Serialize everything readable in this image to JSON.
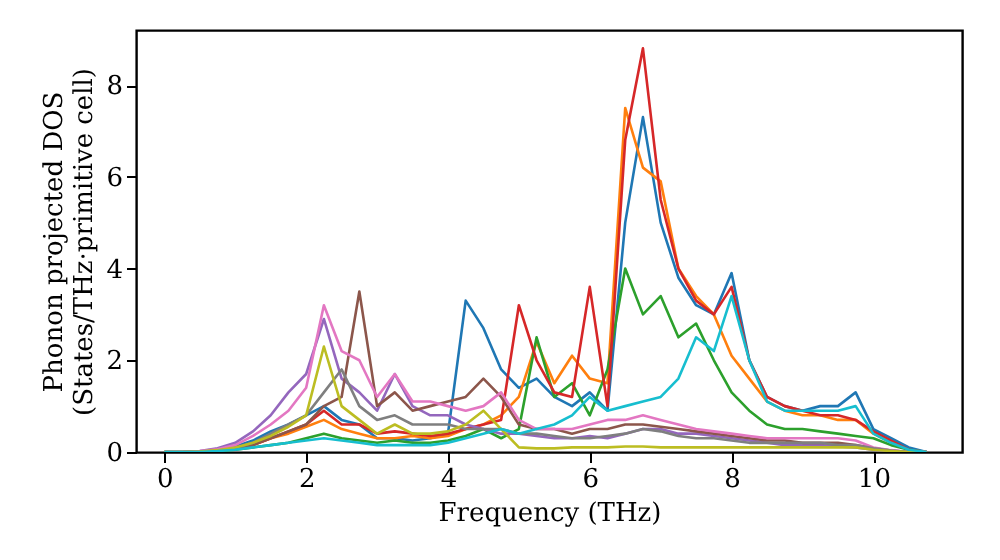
{
  "chart_data": {
    "type": "line",
    "xlabel": "Frequency (THz)",
    "ylabel": "Phonon projected DOS\n(States/THz·primitive cell)",
    "xlim": [
      -0.4,
      11.25
    ],
    "ylim": [
      0,
      9.2
    ],
    "xticks": [
      0,
      2,
      4,
      6,
      8,
      10
    ],
    "yticks": [
      0,
      2,
      4,
      6,
      8
    ],
    "grid": false,
    "legend": false,
    "marker": "none",
    "line_style": "solid",
    "x": [
      0,
      0.25,
      0.5,
      0.75,
      1,
      1.25,
      1.5,
      1.75,
      2,
      2.25,
      2.5,
      2.75,
      3,
      3.25,
      3.5,
      3.75,
      4,
      4.25,
      4.5,
      4.75,
      5,
      5.25,
      5.5,
      5.75,
      6,
      6.25,
      6.5,
      6.75,
      7,
      7.25,
      7.5,
      7.75,
      8,
      8.25,
      8.5,
      8.75,
      9,
      9.25,
      9.5,
      9.75,
      10,
      10.25,
      10.5,
      10.75
    ],
    "series": [
      {
        "color": "#1f77b4",
        "values": [
          null,
          null,
          null,
          0.05,
          0.12,
          0.25,
          0.45,
          0.6,
          0.8,
          1.0,
          0.7,
          0.6,
          0.3,
          0.3,
          0.25,
          0.3,
          0.4,
          3.3,
          2.7,
          1.8,
          1.4,
          1.6,
          1.2,
          1.0,
          1.3,
          0.9,
          5.0,
          7.3,
          5.0,
          3.8,
          3.2,
          3.0,
          3.9,
          2.0,
          1.2,
          1.0,
          0.9,
          1.0,
          1.0,
          1.3,
          0.5,
          0.3,
          0.1,
          0
        ]
      },
      {
        "color": "#ff7f0e",
        "values": [
          null,
          null,
          null,
          null,
          null,
          0.15,
          0.3,
          0.4,
          0.55,
          0.7,
          0.5,
          0.4,
          0.3,
          0.3,
          0.35,
          0.3,
          0.35,
          0.5,
          0.6,
          0.8,
          1.2,
          2.4,
          1.5,
          2.1,
          1.6,
          1.5,
          7.5,
          6.2,
          5.9,
          4.0,
          3.4,
          3.0,
          2.1,
          1.6,
          1.1,
          0.9,
          0.8,
          0.8,
          0.7,
          0.7,
          0.4,
          0.2,
          null,
          null
        ]
      },
      {
        "color": "#2ca02c",
        "values": [
          0,
          0,
          0,
          0.02,
          0.05,
          0.1,
          0.15,
          0.2,
          0.3,
          0.4,
          0.3,
          0.25,
          0.2,
          0.25,
          0.2,
          0.2,
          0.25,
          0.35,
          0.5,
          0.3,
          0.5,
          2.5,
          1.2,
          1.5,
          0.8,
          1.8,
          4.0,
          3.0,
          3.4,
          2.5,
          2.8,
          2.0,
          1.3,
          0.9,
          0.6,
          0.5,
          0.5,
          0.45,
          0.4,
          0.35,
          0.3,
          0.15,
          0.05,
          0
        ]
      },
      {
        "color": "#d62728",
        "values": [
          null,
          null,
          0,
          0.03,
          0.08,
          0.15,
          0.3,
          0.45,
          0.6,
          0.9,
          0.6,
          0.6,
          0.4,
          0.45,
          0.4,
          0.35,
          0.4,
          0.5,
          0.6,
          0.7,
          3.2,
          2.0,
          1.3,
          1.2,
          3.6,
          1.0,
          6.8,
          8.8,
          5.5,
          4.0,
          3.3,
          3.0,
          3.6,
          2.0,
          1.2,
          1.0,
          0.9,
          0.8,
          0.8,
          0.7,
          0.45,
          0.25,
          0.05,
          0
        ]
      },
      {
        "color": "#9467bd",
        "values": [
          0,
          0,
          0.02,
          0.08,
          0.2,
          0.45,
          0.8,
          1.3,
          1.7,
          2.9,
          1.6,
          1.3,
          0.9,
          1.7,
          1.0,
          0.8,
          0.8,
          0.6,
          0.5,
          0.4,
          0.4,
          0.35,
          0.3,
          0.3,
          0.35,
          0.3,
          0.4,
          0.5,
          0.5,
          0.4,
          0.4,
          0.35,
          0.3,
          0.25,
          0.2,
          0.15,
          0.15,
          0.15,
          0.12,
          0.1,
          0.05,
          0.02,
          0,
          0
        ]
      },
      {
        "color": "#8c564b",
        "values": [
          0,
          0,
          0.01,
          0.03,
          0.08,
          0.15,
          0.3,
          0.45,
          0.6,
          1.0,
          1.2,
          3.5,
          1.0,
          1.3,
          0.9,
          1.0,
          1.1,
          1.2,
          1.6,
          1.2,
          0.6,
          0.5,
          0.5,
          0.4,
          0.5,
          0.5,
          0.6,
          0.6,
          0.55,
          0.5,
          0.45,
          0.4,
          0.35,
          0.3,
          0.25,
          0.25,
          0.2,
          0.2,
          0.2,
          0.15,
          0.08,
          0.03,
          0,
          0
        ]
      },
      {
        "color": "#e377c2",
        "values": [
          0,
          0,
          0.02,
          0.06,
          0.15,
          0.35,
          0.6,
          0.9,
          1.4,
          3.2,
          2.2,
          2.0,
          1.2,
          1.7,
          1.1,
          1.1,
          1.0,
          0.9,
          1.0,
          1.3,
          0.7,
          0.5,
          0.5,
          0.5,
          0.6,
          0.7,
          0.7,
          0.8,
          0.7,
          0.6,
          0.5,
          0.45,
          0.4,
          0.35,
          0.3,
          0.3,
          0.3,
          0.3,
          0.3,
          0.25,
          0.1,
          0.04,
          0,
          0
        ]
      },
      {
        "color": "#7f7f7f",
        "values": [
          0,
          0,
          0.01,
          0.03,
          0.08,
          0.2,
          0.4,
          0.6,
          0.8,
          1.3,
          1.8,
          1.0,
          0.7,
          0.8,
          0.6,
          0.6,
          0.6,
          0.5,
          0.5,
          0.5,
          0.4,
          0.4,
          0.35,
          0.3,
          0.3,
          0.35,
          0.4,
          0.5,
          0.45,
          0.35,
          0.3,
          0.3,
          0.25,
          0.2,
          0.2,
          0.2,
          0.2,
          0.2,
          0.15,
          0.15,
          0.08,
          0.03,
          0,
          0
        ]
      },
      {
        "color": "#bcbd22",
        "values": [
          0,
          0,
          0.01,
          0.04,
          0.1,
          0.2,
          0.35,
          0.55,
          0.8,
          2.3,
          1.0,
          0.7,
          0.4,
          0.6,
          0.4,
          0.4,
          0.45,
          0.6,
          0.9,
          0.5,
          0.1,
          0.08,
          0.08,
          0.1,
          0.1,
          0.1,
          0.12,
          0.12,
          0.1,
          0.1,
          0.1,
          0.1,
          0.1,
          0.1,
          0.1,
          0.1,
          0.1,
          0.1,
          0.1,
          0.1,
          0.05,
          0.02,
          0,
          0
        ]
      },
      {
        "color": "#17becf",
        "values": [
          0,
          0,
          0,
          0.02,
          0.05,
          0.1,
          0.15,
          0.2,
          0.25,
          0.3,
          0.25,
          0.2,
          0.15,
          0.15,
          0.15,
          0.15,
          0.2,
          0.3,
          0.4,
          0.5,
          0.4,
          0.5,
          0.6,
          0.8,
          1.2,
          0.9,
          1.0,
          1.1,
          1.2,
          1.6,
          2.5,
          2.2,
          3.4,
          2.0,
          1.1,
          0.9,
          0.9,
          0.9,
          0.9,
          1.0,
          0.4,
          0.2,
          0.05,
          0
        ]
      }
    ]
  }
}
